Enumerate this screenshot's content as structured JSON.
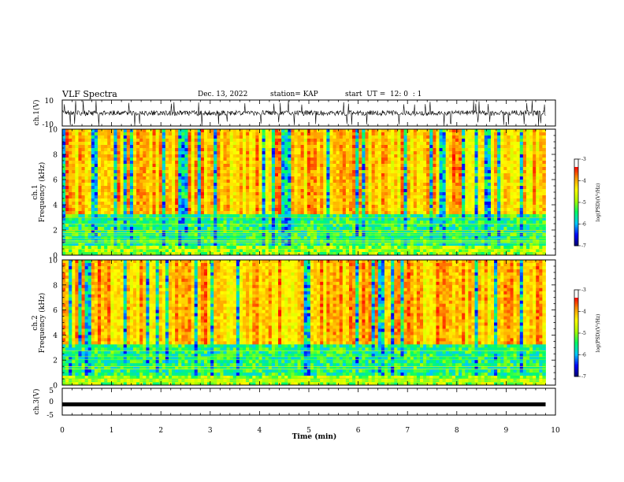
{
  "header": {
    "title": "VLF Spectra",
    "date": "Dec. 13, 2022",
    "station": "station= KAP",
    "start": "start  UT =  12: 0  : 1"
  },
  "colors": {
    "trace": "#000000",
    "colormap": [
      "#000066",
      "#0000ff",
      "#00c8ff",
      "#00ff66",
      "#aaff00",
      "#ffff00",
      "#ff9900",
      "#ff0000",
      "#ffffff"
    ]
  },
  "chart_data": [
    {
      "type": "line",
      "name": "ch1-waveform",
      "ylabel": "ch.1(V)",
      "ylim": [
        -10,
        10
      ],
      "yticks": [
        "10",
        "-10"
      ],
      "xlim": [
        0,
        10
      ]
    },
    {
      "type": "heatmap",
      "name": "ch1-spectrogram",
      "ylabel_line1": "ch.1",
      "ylabel_line2": "Frequency (kHz)",
      "ylim": [
        0,
        10
      ],
      "yticks": [
        "0",
        "2",
        "4",
        "6",
        "8",
        "10"
      ],
      "xlim": [
        0,
        9.8
      ],
      "colorbar": {
        "label": "log(PSD)(V²/Hz)",
        "range": [
          -7,
          -3
        ],
        "ticks": [
          "-3",
          "-4",
          "-5",
          "-6",
          "-7"
        ]
      }
    },
    {
      "type": "heatmap",
      "name": "ch2-spectrogram",
      "ylabel_line1": "ch.2",
      "ylabel_line2": "Frequency (kHz)",
      "ylim": [
        0,
        10
      ],
      "yticks": [
        "0",
        "2",
        "4",
        "6",
        "8",
        "10"
      ],
      "xlim": [
        0,
        9.8
      ],
      "colorbar": {
        "label": "log(PSD)(V²/Hz)",
        "range": [
          -7,
          -3
        ],
        "ticks": [
          "-3",
          "-4",
          "-5",
          "-6",
          "-7"
        ]
      }
    },
    {
      "type": "line",
      "name": "ch3-waveform",
      "ylabel": "ch.3(V)",
      "ylim": [
        -5,
        5
      ],
      "yticks": [
        "5",
        "0",
        "-5"
      ],
      "xlim": [
        0,
        10
      ],
      "xlabel": "Time  (min)",
      "xticks": [
        "0",
        "1",
        "2",
        "3",
        "4",
        "5",
        "6",
        "7",
        "8",
        "9",
        "10"
      ],
      "y_level": -1
    }
  ]
}
